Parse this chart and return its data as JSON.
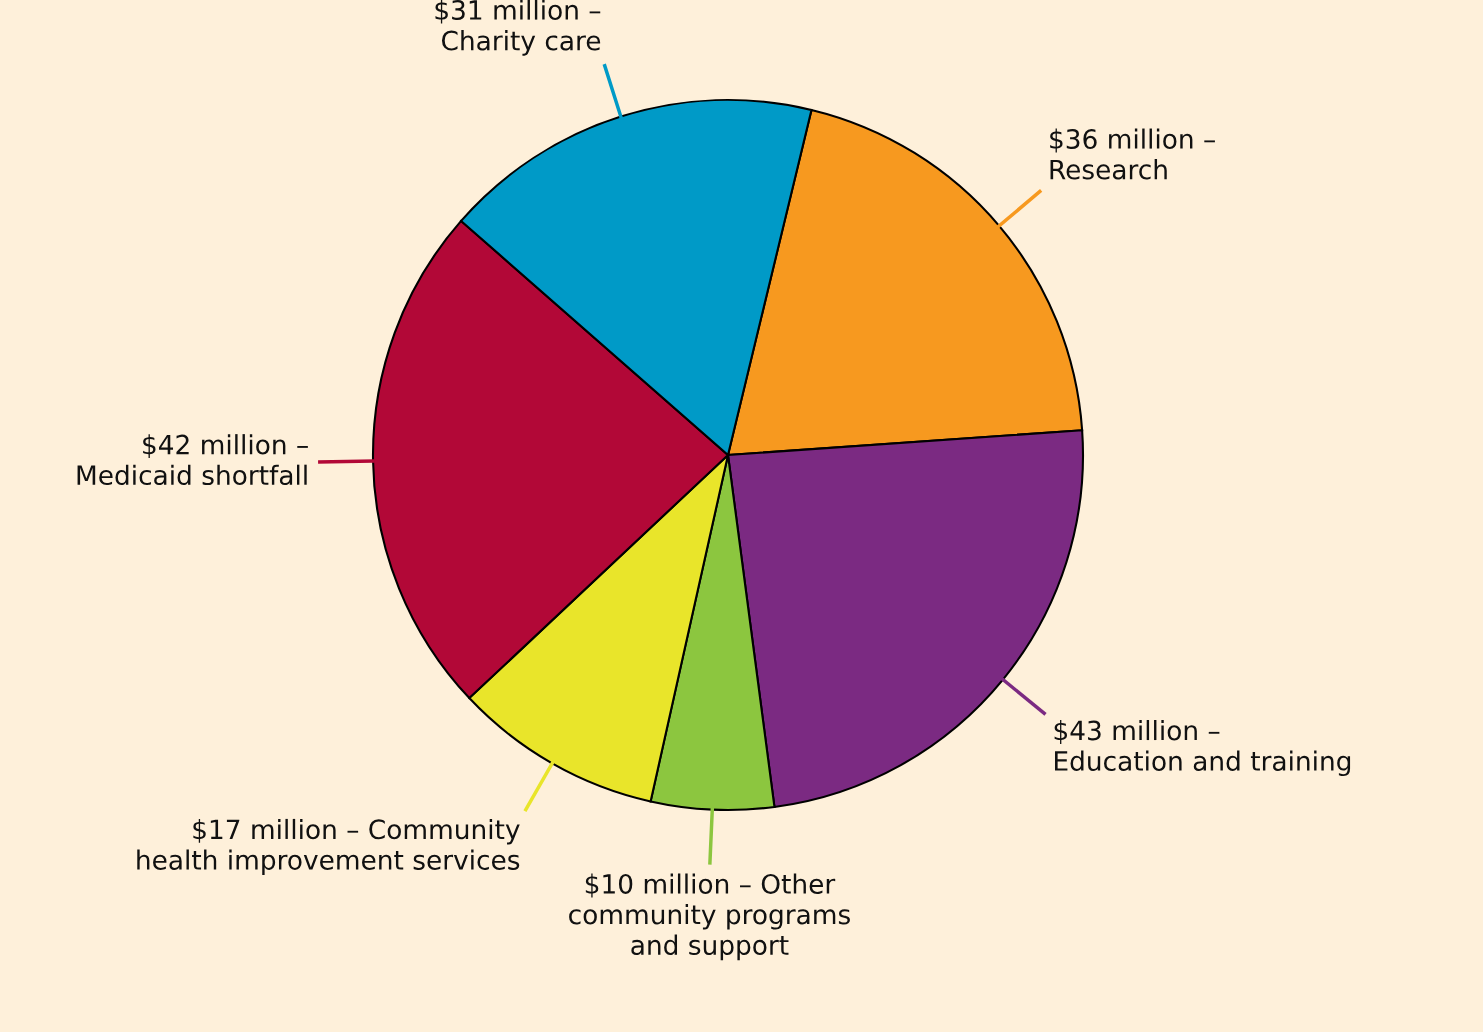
{
  "chart_data": {
    "type": "pie",
    "categories": [
      "$36 million –\nResearch",
      "$43 million –\nEducation and training",
      "$10 million – Other\ncommunity programs\nand support",
      "$17 million – Community\nhealth improvement services",
      "$42 million –\nMedicaid shortfall",
      "$31 million –\nCharity care"
    ],
    "values": [
      36,
      43,
      10,
      17,
      42,
      31
    ],
    "colors": [
      "#f7991f",
      "#7b2a82",
      "#8cc63f",
      "#e9e52a",
      "#b20837",
      "#009ac7"
    ],
    "legend": false
  }
}
